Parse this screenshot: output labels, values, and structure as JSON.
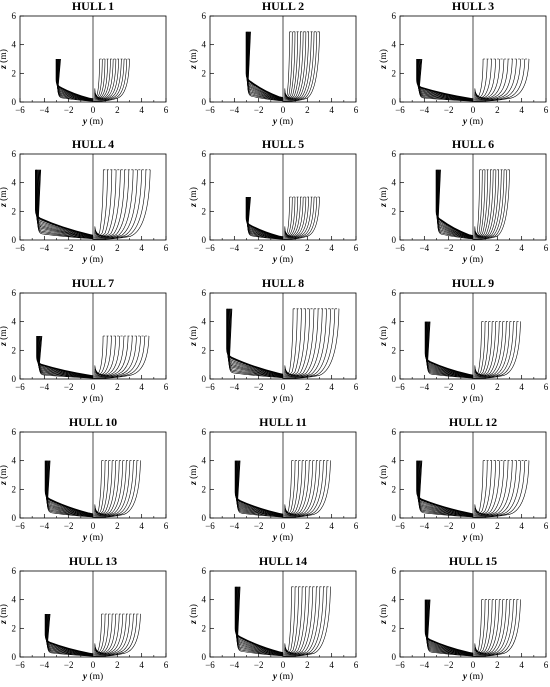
{
  "chart_data": [
    {
      "type": "line",
      "title": "HULL 1",
      "xlabel_var": "y",
      "xlabel_unit": " (m)",
      "ylabel_var": "z",
      "ylabel_unit": " (m)",
      "xlim": [
        -6,
        6
      ],
      "ylim": [
        0,
        6
      ],
      "xticks": [
        "−6",
        "−4",
        "−2",
        "0",
        "2",
        "4",
        "6"
      ],
      "yticks": [
        "0",
        "2",
        "4",
        "6"
      ],
      "hull": {
        "half_beam": 3.0,
        "depth": 3.0,
        "chine": 1.0,
        "stations": 12
      }
    },
    {
      "type": "line",
      "title": "HULL 2",
      "xlabel_var": "y",
      "xlabel_unit": " (m)",
      "ylabel_var": "z",
      "ylabel_unit": " (m)",
      "xlim": [
        -6,
        6
      ],
      "ylim": [
        0,
        6
      ],
      "xticks": [
        "−6",
        "−4",
        "−2",
        "0",
        "2",
        "4",
        "6"
      ],
      "yticks": [
        "0",
        "2",
        "4",
        "6"
      ],
      "hull": {
        "half_beam": 3.0,
        "depth": 4.9,
        "chine": 1.4,
        "stations": 12
      }
    },
    {
      "type": "line",
      "title": "HULL 3",
      "xlabel_var": "y",
      "xlabel_unit": " (m)",
      "ylabel_var": "z",
      "ylabel_unit": " (m)",
      "xlim": [
        -6,
        6
      ],
      "ylim": [
        0,
        6
      ],
      "xticks": [
        "−6",
        "−4",
        "−2",
        "0",
        "2",
        "4",
        "6"
      ],
      "yticks": [
        "0",
        "2",
        "4",
        "6"
      ],
      "hull": {
        "half_beam": 4.6,
        "depth": 3.0,
        "chine": 1.0,
        "stations": 12
      }
    },
    {
      "type": "line",
      "title": "HULL 4",
      "xlabel_var": "y",
      "xlabel_unit": " (m)",
      "ylabel_var": "z",
      "ylabel_unit": " (m)",
      "xlim": [
        -6,
        6
      ],
      "ylim": [
        0,
        6
      ],
      "xticks": [
        "−6",
        "−4",
        "−2",
        "0",
        "2",
        "4",
        "6"
      ],
      "yticks": [
        "0",
        "2",
        "4",
        "6"
      ],
      "hull": {
        "half_beam": 4.7,
        "depth": 4.9,
        "chine": 1.5,
        "stations": 12
      }
    },
    {
      "type": "line",
      "title": "HULL 5",
      "xlabel_var": "y",
      "xlabel_unit": " (m)",
      "ylabel_var": "z",
      "ylabel_unit": " (m)",
      "xlim": [
        -6,
        6
      ],
      "ylim": [
        0,
        6
      ],
      "xticks": [
        "−6",
        "−4",
        "−2",
        "0",
        "2",
        "4",
        "6"
      ],
      "yticks": [
        "0",
        "2",
        "4",
        "6"
      ],
      "hull": {
        "half_beam": 3.0,
        "depth": 3.0,
        "chine": 1.0,
        "stations": 12
      }
    },
    {
      "type": "line",
      "title": "HULL 6",
      "xlabel_var": "y",
      "xlabel_unit": " (m)",
      "ylabel_var": "z",
      "ylabel_unit": " (m)",
      "xlim": [
        -6,
        6
      ],
      "ylim": [
        0,
        6
      ],
      "xticks": [
        "−6",
        "−4",
        "−2",
        "0",
        "2",
        "4",
        "6"
      ],
      "yticks": [
        "0",
        "2",
        "4",
        "6"
      ],
      "hull": {
        "half_beam": 3.0,
        "depth": 4.9,
        "chine": 1.4,
        "stations": 12
      }
    },
    {
      "type": "line",
      "title": "HULL 7",
      "xlabel_var": "y",
      "xlabel_unit": " (m)",
      "ylabel_var": "z",
      "ylabel_unit": " (m)",
      "xlim": [
        -6,
        6
      ],
      "ylim": [
        0,
        6
      ],
      "xticks": [
        "−6",
        "−4",
        "−2",
        "0",
        "2",
        "4",
        "6"
      ],
      "yticks": [
        "0",
        "2",
        "4",
        "6"
      ],
      "hull": {
        "half_beam": 4.6,
        "depth": 3.0,
        "chine": 1.0,
        "stations": 12
      }
    },
    {
      "type": "line",
      "title": "HULL 8",
      "xlabel_var": "y",
      "xlabel_unit": " (m)",
      "ylabel_var": "z",
      "ylabel_unit": " (m)",
      "xlim": [
        -6,
        6
      ],
      "ylim": [
        0,
        6
      ],
      "xticks": [
        "−6",
        "−4",
        "−2",
        "0",
        "2",
        "4",
        "6"
      ],
      "yticks": [
        "0",
        "2",
        "4",
        "6"
      ],
      "hull": {
        "half_beam": 4.6,
        "depth": 4.9,
        "chine": 1.5,
        "stations": 12
      }
    },
    {
      "type": "line",
      "title": "HULL 9",
      "xlabel_var": "y",
      "xlabel_unit": " (m)",
      "ylabel_var": "z",
      "ylabel_unit": " (m)",
      "xlim": [
        -6,
        6
      ],
      "ylim": [
        0,
        6
      ],
      "xticks": [
        "−6",
        "−4",
        "−2",
        "0",
        "2",
        "4",
        "6"
      ],
      "yticks": [
        "0",
        "2",
        "4",
        "6"
      ],
      "hull": {
        "half_beam": 3.9,
        "depth": 4.0,
        "chine": 1.2,
        "stations": 12
      }
    },
    {
      "type": "line",
      "title": "HULL 10",
      "xlabel_var": "y",
      "xlabel_unit": " (m)",
      "ylabel_var": "z",
      "ylabel_unit": " (m)",
      "xlim": [
        -6,
        6
      ],
      "ylim": [
        0,
        6
      ],
      "xticks": [
        "−6",
        "−4",
        "−2",
        "0",
        "2",
        "4",
        "6"
      ],
      "yticks": [
        "0",
        "2",
        "4",
        "6"
      ],
      "hull": {
        "half_beam": 3.9,
        "depth": 4.0,
        "chine": 1.3,
        "stations": 12
      }
    },
    {
      "type": "line",
      "title": "HULL 11",
      "xlabel_var": "y",
      "xlabel_unit": " (m)",
      "ylabel_var": "z",
      "ylabel_unit": " (m)",
      "xlim": [
        -6,
        6
      ],
      "ylim": [
        0,
        6
      ],
      "xticks": [
        "−6",
        "−4",
        "−2",
        "0",
        "2",
        "4",
        "6"
      ],
      "yticks": [
        "0",
        "2",
        "4",
        "6"
      ],
      "hull": {
        "half_beam": 3.9,
        "depth": 4.0,
        "chine": 1.2,
        "stations": 12
      }
    },
    {
      "type": "line",
      "title": "HULL 12",
      "xlabel_var": "y",
      "xlabel_unit": " (m)",
      "ylabel_var": "z",
      "ylabel_unit": " (m)",
      "xlim": [
        -6,
        6
      ],
      "ylim": [
        0,
        6
      ],
      "xticks": [
        "−6",
        "−4",
        "−2",
        "0",
        "2",
        "4",
        "6"
      ],
      "yticks": [
        "0",
        "2",
        "4",
        "6"
      ],
      "hull": {
        "half_beam": 4.6,
        "depth": 4.0,
        "chine": 1.3,
        "stations": 12
      }
    },
    {
      "type": "line",
      "title": "HULL 13",
      "xlabel_var": "y",
      "xlabel_unit": " (m)",
      "ylabel_var": "z",
      "ylabel_unit": " (m)",
      "xlim": [
        -6,
        6
      ],
      "ylim": [
        0,
        6
      ],
      "xticks": [
        "−6",
        "−4",
        "−2",
        "0",
        "2",
        "4",
        "6"
      ],
      "yticks": [
        "0",
        "2",
        "4",
        "6"
      ],
      "hull": {
        "half_beam": 3.9,
        "depth": 3.0,
        "chine": 1.0,
        "stations": 12
      }
    },
    {
      "type": "line",
      "title": "HULL 14",
      "xlabel_var": "y",
      "xlabel_unit": " (m)",
      "ylabel_var": "z",
      "ylabel_unit": " (m)",
      "xlim": [
        -6,
        6
      ],
      "ylim": [
        0,
        6
      ],
      "xticks": [
        "−6",
        "−4",
        "−2",
        "0",
        "2",
        "4",
        "6"
      ],
      "yticks": [
        "0",
        "2",
        "4",
        "6"
      ],
      "hull": {
        "half_beam": 3.9,
        "depth": 4.9,
        "chine": 1.4,
        "stations": 12
      }
    },
    {
      "type": "line",
      "title": "HULL 15",
      "xlabel_var": "y",
      "xlabel_unit": " (m)",
      "ylabel_var": "z",
      "ylabel_unit": " (m)",
      "xlim": [
        -6,
        6
      ],
      "ylim": [
        0,
        6
      ],
      "xticks": [
        "−6",
        "−4",
        "−2",
        "0",
        "2",
        "4",
        "6"
      ],
      "yticks": [
        "0",
        "2",
        "4",
        "6"
      ],
      "hull": {
        "half_beam": 3.9,
        "depth": 4.0,
        "chine": 1.2,
        "stations": 12
      }
    }
  ],
  "colors": {
    "line": "#000000",
    "background": "#ffffff"
  }
}
